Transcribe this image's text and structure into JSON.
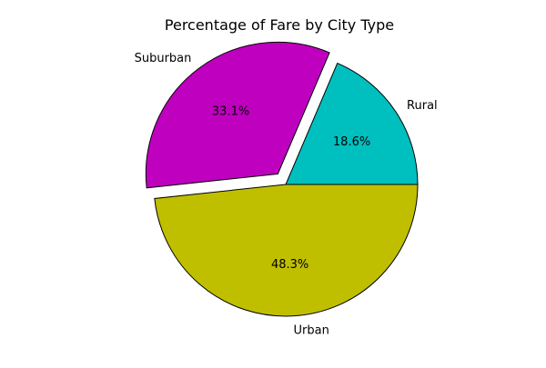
{
  "chart_data": {
    "type": "pie",
    "title": "Percentage of Fare by City Type",
    "slices": [
      {
        "label": "Rural",
        "value": 18.6,
        "display": "18.6%",
        "color": "#00bfbf",
        "explode": 0
      },
      {
        "label": "Suburban",
        "value": 33.1,
        "display": "33.1%",
        "color": "#bf00bf",
        "explode": 0.1
      },
      {
        "label": "Urban",
        "value": 48.3,
        "display": "48.3%",
        "color": "#bfbf00",
        "explode": 0
      }
    ],
    "start_angle": 0,
    "direction": "counterclockwise",
    "edge_color": "#000000"
  }
}
